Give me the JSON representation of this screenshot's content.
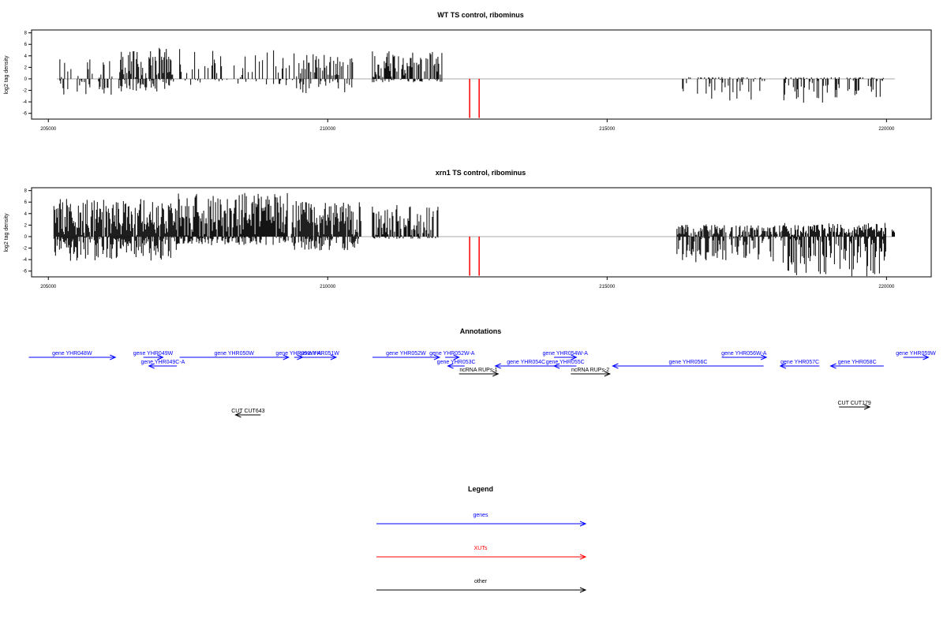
{
  "chart_data": [
    {
      "type": "bar",
      "title": "WT TS control, ribominus",
      "ylabel": "log2 tag density",
      "xlabel": "",
      "xlim": [
        204700,
        220800
      ],
      "ylim": [
        -7,
        8.5
      ],
      "xticks": [
        "205000",
        "210000",
        "215000",
        "220000"
      ],
      "yticks": [
        "8",
        "6",
        "4",
        "2",
        "0",
        "-2",
        "-4",
        "-6"
      ],
      "regions": [
        {
          "from": 205150,
          "to": 206150,
          "plus_max": 3.4,
          "minus_max": 3.2,
          "density": 0.35
        },
        {
          "from": 206250,
          "to": 207250,
          "plus_max": 5.4,
          "minus_max": 2.2,
          "density": 0.75
        },
        {
          "from": 207350,
          "to": 209400,
          "plus_max": 5.2,
          "minus_max": 1.2,
          "density": 0.3
        },
        {
          "from": 209400,
          "to": 210450,
          "plus_max": 4.3,
          "minus_max": 2.6,
          "density": 0.55
        },
        {
          "from": 210800,
          "to": 212050,
          "plus_max": 4.8,
          "minus_max": 0.6,
          "density": 0.55
        },
        {
          "from": 216250,
          "to": 217900,
          "plus_max": 0.3,
          "minus_max": 3.8,
          "density": 0.45
        },
        {
          "from": 218050,
          "to": 219950,
          "plus_max": 0.3,
          "minus_max": 4.2,
          "density": 0.45
        }
      ],
      "xut_lines": [
        212540,
        212710
      ],
      "xut_depth": -6.8
    },
    {
      "type": "bar",
      "title": "xrn1 TS control, ribominus",
      "ylabel": "log2 tag density",
      "xlabel": "",
      "xlim": [
        204700,
        220800
      ],
      "ylim": [
        -7,
        8.5
      ],
      "xticks": [
        "205000",
        "210000",
        "215000",
        "220000"
      ],
      "yticks": [
        "8",
        "6",
        "4",
        "2",
        "0",
        "-2",
        "-4",
        "-6"
      ],
      "regions": [
        {
          "from": 205100,
          "to": 207300,
          "plus_max": 6.6,
          "minus_max": 4.2,
          "density": 0.95
        },
        {
          "from": 207300,
          "to": 209300,
          "plus_max": 7.6,
          "minus_max": 1.5,
          "density": 0.9
        },
        {
          "from": 209350,
          "to": 210600,
          "plus_max": 6.3,
          "minus_max": 2.4,
          "density": 0.9
        },
        {
          "from": 210800,
          "to": 212000,
          "plus_max": 5.5,
          "minus_max": 0.4,
          "density": 0.75
        },
        {
          "from": 216250,
          "to": 218150,
          "plus_max": 2.2,
          "minus_max": 4.5,
          "density": 0.8
        },
        {
          "from": 218150,
          "to": 220000,
          "plus_max": 2.4,
          "minus_max": 6.9,
          "density": 0.9
        },
        {
          "from": 220100,
          "to": 220150,
          "plus_max": 1.5,
          "minus_max": 0.1,
          "density": 1.0
        }
      ],
      "xut_lines": [
        212540,
        212710
      ],
      "xut_depth": -6.8
    }
  ],
  "annotations": {
    "title": "Annotations",
    "genes": [
      {
        "label": "gene YHR048W",
        "from": 204650,
        "to": 206200,
        "dir": "right",
        "row": 0,
        "color": "#0000ff"
      },
      {
        "label": "gene YHR049W",
        "from": 206700,
        "to": 207050,
        "dir": "right",
        "row": 0,
        "color": "#0000ff"
      },
      {
        "label": "gene YHR049C-A",
        "from": 206800,
        "to": 207300,
        "dir": "left",
        "row": 1,
        "color": "#0000ff"
      },
      {
        "label": "gene YHR050W",
        "from": 207350,
        "to": 209300,
        "dir": "right",
        "row": 0,
        "color": "#0000ff"
      },
      {
        "label": "gene YHR050W-A",
        "from": 209400,
        "to": 209550,
        "dir": "right",
        "row": 0,
        "color": "#0000ff"
      },
      {
        "label": "gene YHR051W",
        "from": 209550,
        "to": 210150,
        "dir": "right",
        "row": 0,
        "color": "#0000ff"
      },
      {
        "label": "gene YHR052W",
        "from": 210800,
        "to": 212000,
        "dir": "right",
        "row": 0,
        "color": "#0000ff"
      },
      {
        "label": "gene YHR052W-A",
        "from": 212100,
        "to": 212350,
        "dir": "right",
        "row": 0,
        "color": "#0000ff"
      },
      {
        "label": "gene YHR053C",
        "from": 212150,
        "to": 212450,
        "dir": "left",
        "row": 1,
        "color": "#0000ff"
      },
      {
        "label": "gene YHR054C",
        "from": 213000,
        "to": 214100,
        "dir": "left",
        "row": 1,
        "color": "#0000ff"
      },
      {
        "label": "gene YHR054W-A",
        "from": 214050,
        "to": 214450,
        "dir": "right",
        "row": 0,
        "color": "#0000ff"
      },
      {
        "label": "gene YHR055C",
        "from": 214050,
        "to": 214450,
        "dir": "left",
        "row": 1,
        "color": "#0000ff"
      },
      {
        "label": "gene YHR056C",
        "from": 215100,
        "to": 217800,
        "dir": "left",
        "row": 1,
        "color": "#0000ff"
      },
      {
        "label": "gene YHR056W-A",
        "from": 217050,
        "to": 217850,
        "dir": "right",
        "row": 0,
        "color": "#0000ff"
      },
      {
        "label": "gene YHR057C",
        "from": 218100,
        "to": 218800,
        "dir": "left",
        "row": 1,
        "color": "#0000ff"
      },
      {
        "label": "gene YHR058C",
        "from": 219000,
        "to": 219950,
        "dir": "left",
        "row": 1,
        "color": "#0000ff"
      },
      {
        "label": "gene YHR059W",
        "from": 220300,
        "to": 220750,
        "dir": "right",
        "row": 0,
        "color": "#0000ff"
      }
    ],
    "other": [
      {
        "label": "ncRNA RUPs-1",
        "from": 212350,
        "to": 213050,
        "dir": "right",
        "row": 2,
        "color": "#000000"
      },
      {
        "label": "ncRNA RUPs-2",
        "from": 214350,
        "to": 215050,
        "dir": "right",
        "row": 2,
        "color": "#000000"
      },
      {
        "label": "CUT CUT643",
        "from": 208350,
        "to": 208800,
        "dir": "left",
        "row": 3,
        "color": "#000000"
      },
      {
        "label": "CUT CUT179",
        "from": 219150,
        "to": 219700,
        "dir": "right",
        "row": 4,
        "color": "#000000"
      }
    ]
  },
  "legend": {
    "title": "Legend",
    "items": [
      {
        "label": "genes",
        "color": "#0000ff"
      },
      {
        "label": "XUTs",
        "color": "#ff0000"
      },
      {
        "label": "other",
        "color": "#000000"
      }
    ]
  },
  "colors": {
    "signal": "#000000",
    "axis": "#000000",
    "zero_line": "#aaaaaa",
    "xut": "#ff0000",
    "gene": "#0000ff",
    "other": "#000000"
  }
}
